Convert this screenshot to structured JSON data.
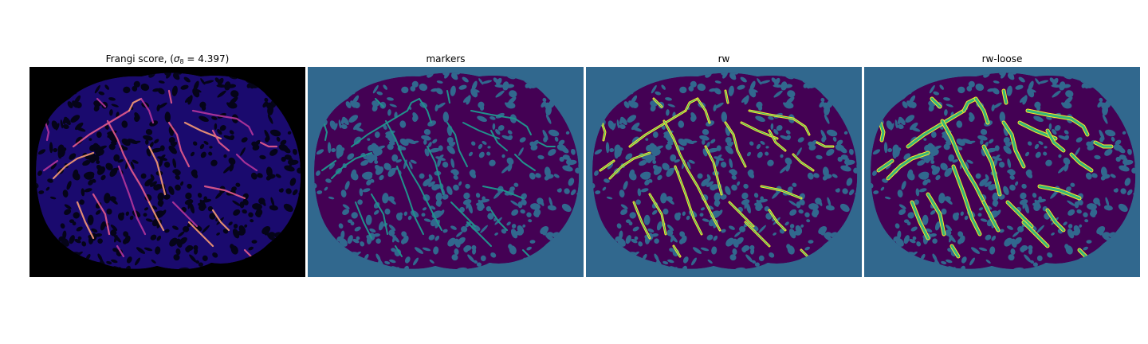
{
  "figure": {
    "panels": [
      {
        "id": "frangi",
        "title_prefix": "Frangi score, (",
        "title_sigma": "σ",
        "title_sub": "8",
        "title_suffix": " = 4.397)",
        "colormap": "magma",
        "background_color": "#000000",
        "tissue_color": "#1a0a6e",
        "dark_spot_color": "#050418",
        "vessel_colors": [
          "#b5359b",
          "#e45a8c",
          "#f79a73"
        ]
      },
      {
        "id": "markers",
        "title": "markers",
        "colormap": "viridis",
        "background_color": "#31688e",
        "tissue_color": "#440154",
        "vessel_color": "#21918c"
      },
      {
        "id": "rw",
        "title": "rw",
        "colormap": "viridis",
        "background_color": "#31688e",
        "tissue_color": "#440154",
        "vessel_color": "#35b779",
        "edge_color": "#fde725"
      },
      {
        "id": "rw-loose",
        "title": "rw-loose",
        "colormap": "viridis",
        "background_color": "#31688e",
        "tissue_color": "#440154",
        "vessel_color": "#35b779",
        "edge_color": "#fde725"
      }
    ]
  }
}
